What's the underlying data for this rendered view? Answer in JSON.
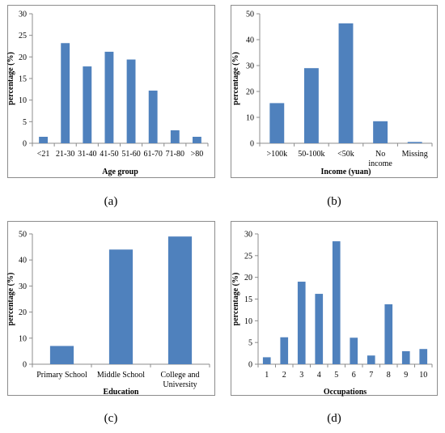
{
  "chart_data": [
    {
      "panel": "(a)",
      "type": "bar",
      "categories": [
        "<21",
        "21-30",
        "31-40",
        "41-50",
        "51-60",
        "61-70",
        "71-80",
        ">80"
      ],
      "values": [
        1.5,
        23.2,
        17.8,
        21.2,
        19.4,
        12.2,
        3.0,
        1.5
      ],
      "xlabel": "Age group",
      "ylabel": "percentage (%)",
      "ylim": [
        0,
        30
      ],
      "yticks": [
        0,
        5,
        10,
        15,
        20,
        25,
        30
      ],
      "color": "#4f81bd",
      "grid": false
    },
    {
      "panel": "(b)",
      "type": "bar",
      "categories": [
        ">100k",
        "50-100k",
        "<50k",
        "No income",
        "Missing"
      ],
      "values": [
        15.5,
        29.0,
        46.3,
        8.5,
        0.5
      ],
      "xlabel": "Income (yuan)",
      "ylabel": "percentage (%)",
      "ylim": [
        0,
        50
      ],
      "yticks": [
        0,
        10,
        20,
        30,
        40,
        50
      ],
      "color": "#4f81bd",
      "grid": false
    },
    {
      "panel": "(c)",
      "type": "bar",
      "categories": [
        "Primary School",
        "Middle School",
        "College and University"
      ],
      "values": [
        7.0,
        44.0,
        49.0
      ],
      "xlabel": "Education",
      "ylabel": "percentage (%)",
      "ylim": [
        0,
        50
      ],
      "yticks": [
        0,
        10,
        20,
        30,
        40,
        50
      ],
      "color": "#4f81bd",
      "grid": false
    },
    {
      "panel": "(d)",
      "type": "bar",
      "categories": [
        "1",
        "2",
        "3",
        "4",
        "5",
        "6",
        "7",
        "8",
        "9",
        "10"
      ],
      "values": [
        1.6,
        6.2,
        19.0,
        16.2,
        28.3,
        6.1,
        2.0,
        13.8,
        3.0,
        3.5
      ],
      "xlabel": "Occupations",
      "ylabel": "percentage (%)",
      "ylim": [
        0,
        30
      ],
      "yticks": [
        0,
        5,
        10,
        15,
        20,
        25,
        30
      ],
      "color": "#4f81bd",
      "grid": false
    }
  ]
}
